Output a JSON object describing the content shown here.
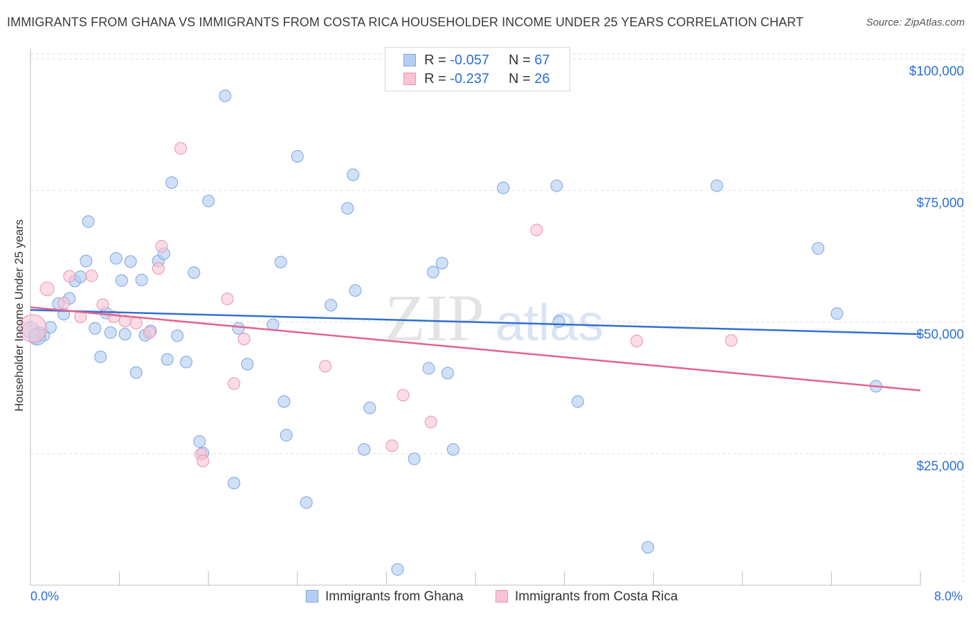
{
  "header": {
    "title": "IMMIGRANTS FROM GHANA VS IMMIGRANTS FROM COSTA RICA HOUSEHOLDER INCOME UNDER 25 YEARS CORRELATION CHART",
    "source": "Source: ZipAtlas.com"
  },
  "legend": {
    "ghana": {
      "r_label": "R = ",
      "r_value": "-0.057",
      "n_label": "N = ",
      "n_value": "67"
    },
    "costa_rica": {
      "r_label": "R = ",
      "r_value": "-0.237",
      "n_label": "N = ",
      "n_value": "26"
    }
  },
  "bottom_legend": {
    "ghana": "Immigrants from Ghana",
    "costa_rica": "Immigrants from Costa Rica"
  },
  "x_axis": {
    "min_label": "0.0%",
    "max_label": "8.0%"
  },
  "watermark": {
    "zip": "ZIP",
    "atlas": "atlas"
  },
  "colors": {
    "ghana_fill": "#b5cff3",
    "ghana_stroke": "#7aa3e0",
    "ghana_line": "#2f6fd1",
    "costa_fill": "#f8c4d3",
    "costa_stroke": "#e993ad",
    "costa_line": "#e3628f",
    "tick_text": "#2b6fd6",
    "grid": "#dddddd"
  },
  "chart_data": {
    "type": "scatter",
    "title": "IMMIGRANTS FROM GHANA VS IMMIGRANTS FROM COSTA RICA HOUSEHOLDER INCOME UNDER 25 YEARS CORRELATION CHART",
    "xlabel": "",
    "ylabel": "Householder Income Under 25 years",
    "xlim": [
      0,
      8
    ],
    "ylim": [
      0,
      102000
    ],
    "x_unit": "%",
    "y_ticks": [
      {
        "value": 25000,
        "label": "$25,000"
      },
      {
        "value": 50000,
        "label": "$50,000"
      },
      {
        "value": 75000,
        "label": "$75,000"
      },
      {
        "value": 100000,
        "label": "$100,000"
      }
    ],
    "series": [
      {
        "name": "Immigrants from Ghana",
        "r": -0.057,
        "n": 67,
        "trend": {
          "x": [
            0,
            8
          ],
          "y": [
            52300,
            47700
          ]
        },
        "points": [
          [
            0.05,
            47000
          ],
          [
            0.08,
            48000
          ],
          [
            0.12,
            47500
          ],
          [
            0.18,
            49000
          ],
          [
            0.25,
            53500
          ],
          [
            0.3,
            51500
          ],
          [
            0.35,
            54500
          ],
          [
            0.4,
            57800
          ],
          [
            0.45,
            58600
          ],
          [
            0.5,
            61600
          ],
          [
            0.52,
            69100
          ],
          [
            0.58,
            48800
          ],
          [
            0.63,
            43400
          ],
          [
            0.68,
            51700
          ],
          [
            0.72,
            48000
          ],
          [
            0.77,
            62100
          ],
          [
            0.82,
            57900
          ],
          [
            0.85,
            47700
          ],
          [
            0.9,
            61500
          ],
          [
            0.95,
            40400
          ],
          [
            1.0,
            58000
          ],
          [
            1.03,
            47500
          ],
          [
            1.08,
            48300
          ],
          [
            1.15,
            61600
          ],
          [
            1.2,
            63000
          ],
          [
            1.23,
            42900
          ],
          [
            1.27,
            76500
          ],
          [
            1.32,
            47400
          ],
          [
            1.4,
            42400
          ],
          [
            1.47,
            59400
          ],
          [
            1.52,
            27300
          ],
          [
            1.55,
            25100
          ],
          [
            1.6,
            73000
          ],
          [
            1.75,
            93000
          ],
          [
            1.83,
            19400
          ],
          [
            1.87,
            48800
          ],
          [
            1.95,
            42000
          ],
          [
            2.18,
            49500
          ],
          [
            2.25,
            61400
          ],
          [
            2.28,
            34900
          ],
          [
            2.3,
            28500
          ],
          [
            2.4,
            81500
          ],
          [
            2.48,
            15700
          ],
          [
            2.7,
            53200
          ],
          [
            2.85,
            71600
          ],
          [
            2.9,
            78000
          ],
          [
            2.92,
            56000
          ],
          [
            3.0,
            25800
          ],
          [
            3.05,
            33700
          ],
          [
            3.3,
            3000
          ],
          [
            3.45,
            24000
          ],
          [
            3.58,
            41200
          ],
          [
            3.62,
            59500
          ],
          [
            3.7,
            61200
          ],
          [
            3.75,
            40300
          ],
          [
            3.8,
            25800
          ],
          [
            4.25,
            75500
          ],
          [
            4.73,
            75900
          ],
          [
            4.75,
            50100
          ],
          [
            4.92,
            34900
          ],
          [
            5.55,
            7200
          ],
          [
            6.17,
            75900
          ],
          [
            7.08,
            64000
          ],
          [
            7.25,
            51600
          ],
          [
            7.6,
            37800
          ],
          [
            0.0,
            48500
          ],
          [
            0.06,
            47200
          ]
        ]
      },
      {
        "name": "Immigrants from Costa Rica",
        "r": -0.237,
        "n": 26,
        "trend": {
          "x": [
            0,
            8
          ],
          "y": [
            52800,
            37000
          ]
        },
        "points": [
          [
            0.02,
            48800
          ],
          [
            0.15,
            56300
          ],
          [
            0.3,
            53600
          ],
          [
            0.35,
            58700
          ],
          [
            0.45,
            51000
          ],
          [
            0.55,
            58800
          ],
          [
            0.65,
            53300
          ],
          [
            0.75,
            51000
          ],
          [
            0.85,
            50200
          ],
          [
            0.95,
            49800
          ],
          [
            1.07,
            48000
          ],
          [
            1.15,
            60200
          ],
          [
            1.18,
            64400
          ],
          [
            1.35,
            83000
          ],
          [
            1.53,
            24900
          ],
          [
            1.55,
            23600
          ],
          [
            1.77,
            54400
          ],
          [
            1.83,
            38300
          ],
          [
            1.92,
            46800
          ],
          [
            2.65,
            41600
          ],
          [
            3.25,
            26500
          ],
          [
            3.35,
            36100
          ],
          [
            3.6,
            31000
          ],
          [
            4.55,
            67500
          ],
          [
            5.45,
            46400
          ],
          [
            6.3,
            46500
          ]
        ]
      }
    ]
  }
}
